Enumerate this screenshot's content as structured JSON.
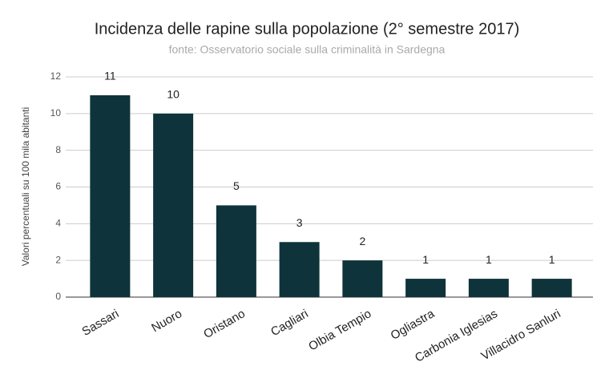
{
  "chart_data": {
    "type": "bar",
    "title": "Incidenza delle rapine sulla popolazione (2° semestre 2017)",
    "subtitle": "fonte: Osservatorio sociale sulla criminalità in Sardegna",
    "y_label": "Valori percentuali su 100 mila abitanti",
    "categories": [
      "Sassari",
      "Nuoro",
      "Oristano",
      "Cagliari",
      "Olbia Tempio",
      "Ogliastra",
      "Carbonia Iglesias",
      "Villacidro Sanluri"
    ],
    "values": [
      11,
      10,
      5,
      3,
      2,
      1,
      1,
      1
    ],
    "color": "#0e333b",
    "ylim": [
      0,
      12
    ],
    "yticks": [
      0,
      2,
      4,
      6,
      8,
      10,
      12
    ],
    "grid": true
  }
}
